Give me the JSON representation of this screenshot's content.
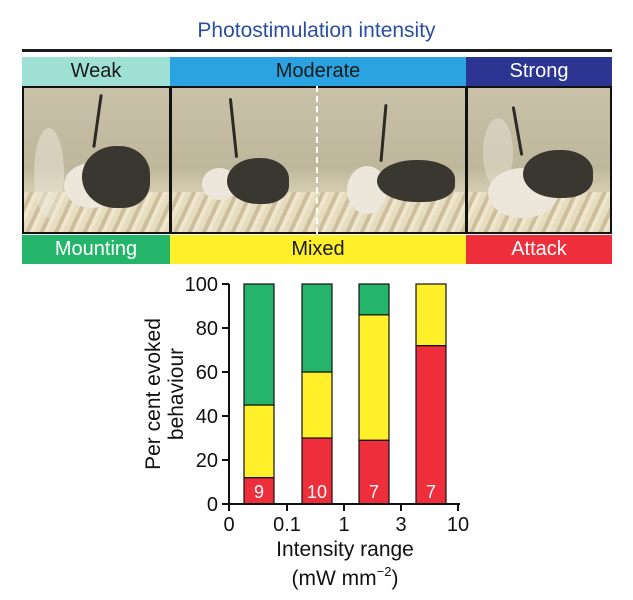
{
  "header": {
    "title": "Photostimulation intensity",
    "intensity_bands": [
      {
        "label": "Weak",
        "color": "#9fe0d4",
        "text_color": "#1a1a1a"
      },
      {
        "label": "Moderate",
        "color": "#2aa3e0",
        "text_color": "#1a1a1a"
      },
      {
        "label": "Strong",
        "color": "#2d3593",
        "text_color": "#ffffff"
      }
    ],
    "behaviour_bands": [
      {
        "label": "Mounting",
        "color": "#25b56a",
        "text_color": "#ffffff"
      },
      {
        "label": "Mixed",
        "color": "#fff02a",
        "text_color": "#1a1a1a"
      },
      {
        "label": "Attack",
        "color": "#ee2e3a",
        "text_color": "#ffffff"
      }
    ]
  },
  "chart_data": {
    "type": "bar",
    "stacked": true,
    "categories": [
      "0–0.1",
      "0.1–1",
      "1–3",
      "3–10"
    ],
    "x_ticks": [
      "0",
      "0.1",
      "1",
      "3",
      "10"
    ],
    "ylabel_lines": [
      "Per cent evoked",
      "behaviour"
    ],
    "xlabel": "Intensity range",
    "xunit": "(mW mm",
    "xunit_sup": "−2",
    "xunit_close": ")",
    "ylim": [
      0,
      100
    ],
    "y_ticks": [
      0,
      20,
      40,
      60,
      80,
      100
    ],
    "series": [
      {
        "name": "Attack",
        "color": "#ee2e3a",
        "values": [
          12,
          30,
          29,
          72
        ]
      },
      {
        "name": "Mixed",
        "color": "#fff02a",
        "values": [
          33,
          30,
          57,
          28
        ]
      },
      {
        "name": "Mounting",
        "color": "#25b56a",
        "values": [
          55,
          40,
          14,
          0
        ]
      }
    ],
    "n_labels": [
      "9",
      "10",
      "7",
      "7"
    ]
  }
}
